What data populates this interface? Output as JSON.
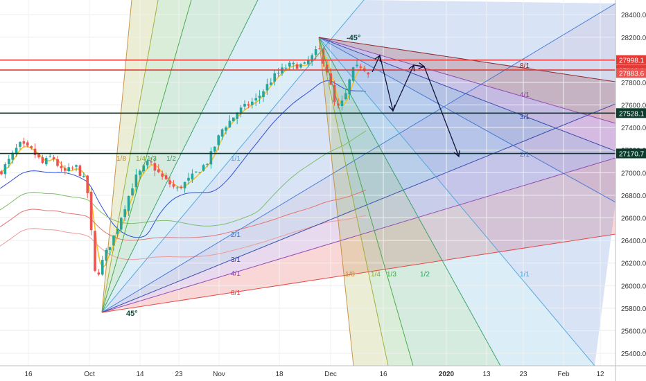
{
  "chart_data": {
    "type": "candlestick",
    "y_axis": {
      "ticks": [
        25400,
        25600,
        25800,
        26000,
        26200,
        26400,
        26600,
        26800,
        27000,
        27200,
        27400,
        27600,
        27800,
        28000,
        28200,
        28400
      ],
      "tick_labels": [
        "25400.0",
        "25600.0",
        "25800.0",
        "26000.0",
        "26200.0",
        "26400.0",
        "26600.0",
        "26800.0",
        "27000.0",
        "27200.0",
        "27400.0",
        "27600.0",
        "27800.0",
        "28000.0",
        "28200.0",
        "28400.0"
      ],
      "range": [
        25290,
        28530
      ]
    },
    "x_axis": {
      "tick_labels": [
        "16",
        "Oct",
        "14",
        "23",
        "Nov",
        "18",
        "Dec",
        "16",
        "2020",
        "13",
        "23",
        "Feb",
        "12"
      ],
      "highlight_label": "2020"
    },
    "price_levels": [
      {
        "value": 27998.1,
        "label": "27998.1",
        "line_color": "#e53935",
        "box_color": "#e53935"
      },
      {
        "value": 27910.0,
        "label": "27910.0",
        "line_color": "#e53935",
        "box_color": "#e53935"
      },
      {
        "value": 27883.6,
        "label": "27883.6",
        "line_color": null,
        "box_color": "#ef5350"
      },
      {
        "value": 27528.1,
        "label": "27528.1",
        "line_color": "#0b3d2e",
        "box_color": "#0b3d2e"
      },
      {
        "value": 27170.7,
        "label": "27170.7",
        "line_color": "#0b3d2e",
        "box_color": "#0b3d2e"
      }
    ],
    "gann_fan_up": {
      "angle_label": "45°",
      "labels": [
        "1/8",
        "1/4",
        "1/3",
        "1/2",
        "1/1",
        "2/1",
        "3/1",
        "4/1",
        "8/1"
      ],
      "colors": [
        "#c58a3a",
        "#9aa82c",
        "#3fa33f",
        "#2e9c5e",
        "#4aa3d9",
        "#3b73d1",
        "#2a3fa8",
        "#8a3fb0",
        "#e53935"
      ]
    },
    "gann_fan_down": {
      "angle_label": "-45°",
      "labels": [
        "1/8",
        "1/4",
        "1/3",
        "1/2",
        "1/1",
        "2/1",
        "3/1",
        "4/1",
        "8/1"
      ],
      "colors": [
        "#c58a3a",
        "#9aa82c",
        "#3fa33f",
        "#2e9c5e",
        "#4aa3d9",
        "#3b73d1",
        "#2a3fa8",
        "#8a3fb0",
        "#8b1a1a"
      ]
    },
    "colors": {
      "bull_candle": "#26a69a",
      "bear_candle": "#ef5350",
      "moving_average_fast": "#f5c02b",
      "arrows": "#10143a"
    }
  }
}
